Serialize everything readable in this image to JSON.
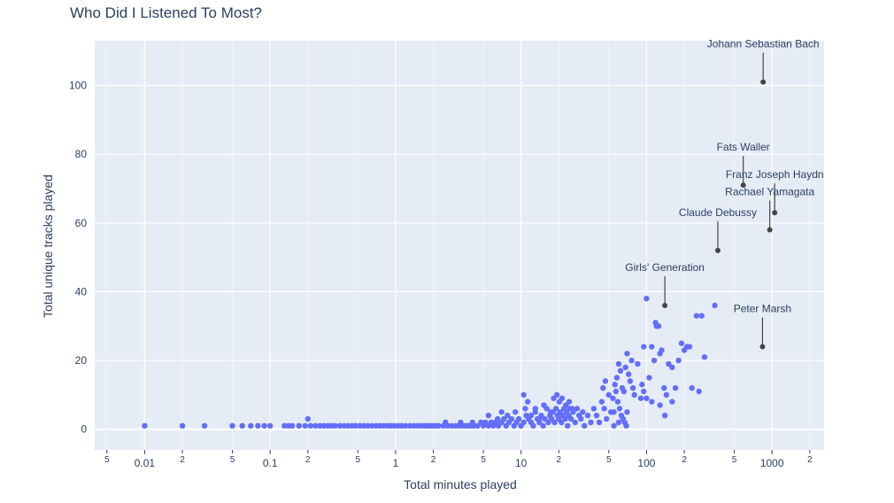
{
  "chart_data": {
    "type": "scatter",
    "title": "Who Did I Listened To Most?",
    "xlabel": "Total minutes played",
    "ylabel": "Total unique tracks played",
    "x_scale": "log",
    "xlim": [
      0.004,
      2600
    ],
    "ylim": [
      -6,
      113
    ],
    "grid": true,
    "legend": "none",
    "point_color": "#636efa",
    "highlight_color": "#444444",
    "plot_bg": "#e5ecf6",
    "x_ticks_major": [
      {
        "value": 0.01,
        "label": "0.01"
      },
      {
        "value": 0.1,
        "label": "0.1"
      },
      {
        "value": 1,
        "label": "1"
      },
      {
        "value": 10,
        "label": "10"
      },
      {
        "value": 100,
        "label": "100"
      },
      {
        "value": 1000,
        "label": "1000"
      }
    ],
    "x_ticks_minor": [
      {
        "value": 0.005,
        "label": "5"
      },
      {
        "value": 0.02,
        "label": "2"
      },
      {
        "value": 0.05,
        "label": "5"
      },
      {
        "value": 0.2,
        "label": "2"
      },
      {
        "value": 0.5,
        "label": "5"
      },
      {
        "value": 2,
        "label": "2"
      },
      {
        "value": 5,
        "label": "5"
      },
      {
        "value": 20,
        "label": "2"
      },
      {
        "value": 50,
        "label": "5"
      },
      {
        "value": 200,
        "label": "2"
      },
      {
        "value": 500,
        "label": "5"
      },
      {
        "value": 2000,
        "label": "2"
      }
    ],
    "y_ticks": [
      {
        "value": 0,
        "label": "0"
      },
      {
        "value": 20,
        "label": "20"
      },
      {
        "value": 40,
        "label": "40"
      },
      {
        "value": 60,
        "label": "60"
      },
      {
        "value": 80,
        "label": "80"
      },
      {
        "value": 100,
        "label": "100"
      }
    ],
    "annotations": [
      {
        "text": "Johann Sebastian Bach",
        "x": 850,
        "y": 101
      },
      {
        "text": "Fats Waller",
        "x": 590,
        "y": 71
      },
      {
        "text": "Franz Joseph Haydn",
        "x": 1050,
        "y": 63
      },
      {
        "text": "Rachael Yamagata",
        "x": 960,
        "y": 58
      },
      {
        "text": "Claude Debussy",
        "x": 370,
        "y": 52
      },
      {
        "text": "Girls' Generation",
        "x": 140,
        "y": 36
      },
      {
        "text": "Peter Marsh",
        "x": 840,
        "y": 24
      }
    ],
    "points": [
      [
        0.01,
        1
      ],
      [
        0.02,
        1
      ],
      [
        0.03,
        1
      ],
      [
        0.05,
        1
      ],
      [
        0.06,
        1
      ],
      [
        0.07,
        1
      ],
      [
        0.08,
        1
      ],
      [
        0.09,
        1
      ],
      [
        0.1,
        1
      ],
      [
        0.13,
        1
      ],
      [
        0.14,
        1
      ],
      [
        0.15,
        1
      ],
      [
        0.17,
        1
      ],
      [
        0.19,
        1
      ],
      [
        0.2,
        3
      ],
      [
        0.21,
        1
      ],
      [
        0.23,
        1
      ],
      [
        0.25,
        1
      ],
      [
        0.27,
        1
      ],
      [
        0.29,
        1
      ],
      [
        0.31,
        1
      ],
      [
        0.33,
        1
      ],
      [
        0.36,
        1
      ],
      [
        0.39,
        1
      ],
      [
        0.42,
        1
      ],
      [
        0.45,
        1
      ],
      [
        0.48,
        1
      ],
      [
        0.52,
        1
      ],
      [
        0.56,
        1
      ],
      [
        0.6,
        1
      ],
      [
        0.65,
        1
      ],
      [
        0.7,
        1
      ],
      [
        0.75,
        1
      ],
      [
        0.8,
        1
      ],
      [
        0.86,
        1
      ],
      [
        0.92,
        1
      ],
      [
        0.98,
        1
      ],
      [
        1.05,
        1
      ],
      [
        1.12,
        1
      ],
      [
        1.2,
        1
      ],
      [
        1.3,
        1
      ],
      [
        1.4,
        1
      ],
      [
        1.5,
        1
      ],
      [
        1.6,
        1
      ],
      [
        1.7,
        1
      ],
      [
        1.8,
        1
      ],
      [
        1.9,
        1
      ],
      [
        2.0,
        1
      ],
      [
        2.1,
        1
      ],
      [
        2.2,
        1
      ],
      [
        2.4,
        1
      ],
      [
        2.6,
        1
      ],
      [
        2.8,
        1
      ],
      [
        3.0,
        1
      ],
      [
        3.2,
        1
      ],
      [
        3.4,
        1
      ],
      [
        3.6,
        1
      ],
      [
        3.8,
        1
      ],
      [
        4.0,
        1
      ],
      [
        4.2,
        1
      ],
      [
        2.5,
        2
      ],
      [
        3.3,
        2
      ],
      [
        4.1,
        2
      ],
      [
        4.5,
        1
      ],
      [
        4.8,
        2
      ],
      [
        5.0,
        1
      ],
      [
        5.2,
        2
      ],
      [
        5.5,
        1
      ],
      [
        5.8,
        2
      ],
      [
        6.0,
        1
      ],
      [
        6.3,
        2
      ],
      [
        6.6,
        1
      ],
      [
        7.0,
        2
      ],
      [
        7.3,
        3
      ],
      [
        7.6,
        1
      ],
      [
        8.0,
        2
      ],
      [
        8.4,
        3
      ],
      [
        8.8,
        1
      ],
      [
        9.2,
        2
      ],
      [
        9.6,
        3
      ],
      [
        10,
        1
      ],
      [
        10.5,
        2
      ],
      [
        11,
        4
      ],
      [
        11.5,
        3
      ],
      [
        12,
        2
      ],
      [
        12.5,
        1
      ],
      [
        13,
        5
      ],
      [
        13.5,
        3
      ],
      [
        14,
        2
      ],
      [
        14.5,
        4
      ],
      [
        15,
        1
      ],
      [
        15.5,
        3
      ],
      [
        16,
        6
      ],
      [
        16.5,
        2
      ],
      [
        17,
        4
      ],
      [
        17.5,
        3
      ],
      [
        18,
        5
      ],
      [
        18.5,
        2
      ],
      [
        19,
        6
      ],
      [
        19.5,
        4
      ],
      [
        20,
        3
      ],
      [
        20.5,
        5
      ],
      [
        21,
        2
      ],
      [
        21.5,
        4
      ],
      [
        22,
        6
      ],
      [
        22.5,
        3
      ],
      [
        23,
        5
      ],
      [
        23.5,
        1
      ],
      [
        24,
        4
      ],
      [
        24.5,
        6
      ],
      [
        25,
        3
      ],
      [
        26,
        5
      ],
      [
        27,
        2
      ],
      [
        28,
        6
      ],
      [
        29,
        4
      ],
      [
        30,
        3
      ],
      [
        31,
        5
      ],
      [
        32,
        1
      ],
      [
        34,
        4
      ],
      [
        36,
        2
      ],
      [
        6.5,
        3
      ],
      [
        7.8,
        4
      ],
      [
        9.0,
        5
      ],
      [
        10.8,
        6
      ],
      [
        11.3,
        8
      ],
      [
        12,
        4
      ],
      [
        13,
        6
      ],
      [
        14,
        3
      ],
      [
        15.2,
        7
      ],
      [
        17.2,
        5
      ],
      [
        18.2,
        9
      ],
      [
        19.3,
        10
      ],
      [
        20.2,
        8
      ],
      [
        21.2,
        9
      ],
      [
        22.8,
        7
      ],
      [
        24.2,
        8
      ],
      [
        25.5,
        6
      ],
      [
        10.5,
        10
      ],
      [
        5.5,
        4
      ],
      [
        7.0,
        5
      ],
      [
        38,
        6
      ],
      [
        40,
        4
      ],
      [
        42,
        2
      ],
      [
        44,
        8
      ],
      [
        46,
        6
      ],
      [
        48,
        3
      ],
      [
        50,
        10
      ],
      [
        52,
        5
      ],
      [
        54,
        9
      ],
      [
        56,
        13
      ],
      [
        58,
        15
      ],
      [
        60,
        19
      ],
      [
        62,
        17
      ],
      [
        64,
        12
      ],
      [
        66,
        11
      ],
      [
        68,
        18
      ],
      [
        70,
        22
      ],
      [
        72,
        16
      ],
      [
        74,
        14
      ],
      [
        76,
        20
      ],
      [
        45,
        12
      ],
      [
        47,
        14
      ],
      [
        55,
        5
      ],
      [
        57,
        11
      ],
      [
        59,
        8
      ],
      [
        61,
        6
      ],
      [
        63,
        4
      ],
      [
        65,
        3
      ],
      [
        67,
        2
      ],
      [
        69,
        1
      ],
      [
        80,
        10
      ],
      [
        85,
        19
      ],
      [
        90,
        9
      ],
      [
        95,
        24
      ],
      [
        100,
        38
      ],
      [
        105,
        15
      ],
      [
        110,
        24
      ],
      [
        115,
        20
      ],
      [
        118,
        31
      ],
      [
        120,
        30
      ],
      [
        125,
        30
      ],
      [
        128,
        22
      ],
      [
        132,
        23
      ],
      [
        138,
        12
      ],
      [
        144,
        10
      ],
      [
        150,
        19
      ],
      [
        160,
        18
      ],
      [
        170,
        12
      ],
      [
        180,
        20
      ],
      [
        190,
        25
      ],
      [
        200,
        23
      ],
      [
        210,
        24
      ],
      [
        220,
        24
      ],
      [
        230,
        12
      ],
      [
        250,
        33
      ],
      [
        262,
        11
      ],
      [
        275,
        33
      ],
      [
        290,
        21
      ],
      [
        350,
        36
      ],
      [
        110,
        8
      ],
      [
        100,
        9
      ],
      [
        92,
        13
      ],
      [
        128,
        7
      ],
      [
        95,
        11
      ],
      [
        78,
        12
      ],
      [
        140,
        4
      ],
      [
        160,
        8
      ],
      [
        60,
        2
      ],
      [
        55,
        1
      ],
      [
        70,
        5
      ]
    ],
    "highlight_points": [
      [
        850,
        101
      ],
      [
        590,
        71
      ],
      [
        1050,
        63
      ],
      [
        960,
        58
      ],
      [
        370,
        52
      ],
      [
        140,
        36
      ],
      [
        840,
        24
      ]
    ]
  }
}
